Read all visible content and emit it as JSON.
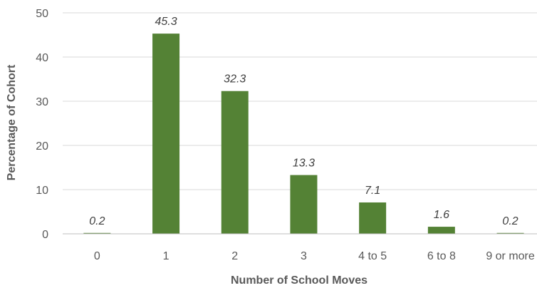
{
  "chart_data": {
    "type": "bar",
    "categories": [
      "0",
      "1",
      "2",
      "3",
      "4  to 5",
      "6 to 8",
      "9 or more"
    ],
    "values": [
      0.2,
      45.3,
      32.3,
      13.3,
      7.1,
      1.6,
      0.2
    ],
    "value_labels": [
      "0.2",
      "45.3",
      "32.3",
      "13.3",
      "7.1",
      "1.6",
      "0.2"
    ],
    "title": "",
    "xlabel": "Number of School Moves",
    "ylabel": "Percentage of Cohort",
    "ylim": [
      0,
      50
    ],
    "yticks": [
      0,
      10,
      20,
      30,
      40,
      50
    ],
    "grid": true,
    "legend": "none",
    "colors": {
      "bar": "#548235",
      "grid": "#d9d9d9",
      "axis": "#bfbfbf"
    }
  }
}
